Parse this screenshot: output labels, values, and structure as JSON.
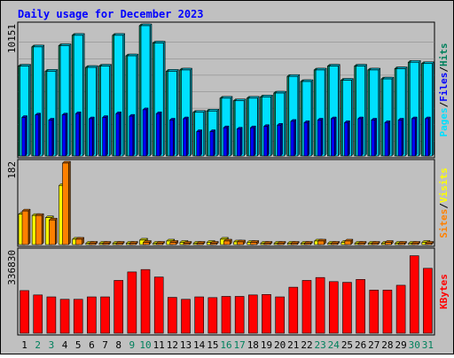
{
  "chart_data": [
    {
      "type": "bar",
      "title": "Daily usage for December 2023",
      "categories": [
        "1",
        "2",
        "3",
        "4",
        "5",
        "6",
        "7",
        "8",
        "9",
        "10",
        "11",
        "12",
        "13",
        "14",
        "15",
        "16",
        "17",
        "18",
        "19",
        "20",
        "21",
        "22",
        "23",
        "24",
        "25",
        "26",
        "27",
        "28",
        "29",
        "30",
        "31"
      ],
      "weekend_days": [
        "2",
        "3",
        "9",
        "10",
        "16",
        "17",
        "23",
        "24",
        "30",
        "31"
      ],
      "panels": [
        {
          "id": "pages-files-hits",
          "y_tick_label": "10151",
          "ylim": [
            0,
            10151
          ],
          "legend": [
            "Pages",
            "/",
            "Files",
            "/",
            "Hits"
          ],
          "grid": true,
          "series": [
            {
              "name": "Hits",
              "color": "#00805c",
              "values": [
                7000,
                8500,
                6600,
                8600,
                9400,
                6900,
                7000,
                9400,
                7800,
                10151,
                8800,
                6600,
                6700,
                3400,
                3500,
                4500,
                4300,
                4500,
                4600,
                4900,
                6200,
                5800,
                6700,
                7000,
                5900,
                7000,
                6700,
                6000,
                6800,
                7300,
                7200
              ]
            },
            {
              "name": "Files",
              "color": "#0000ff",
              "values": [
                3000,
                3200,
                2800,
                3200,
                3300,
                2900,
                3000,
                3300,
                3100,
                3600,
                3300,
                2800,
                2900,
                1900,
                1900,
                2200,
                2100,
                2200,
                2300,
                2400,
                2700,
                2600,
                2800,
                2900,
                2600,
                2900,
                2800,
                2600,
                2800,
                2900,
                2900
              ]
            },
            {
              "name": "Pages",
              "color": "#00e0ff",
              "values": [
                7000,
                8500,
                6600,
                8600,
                9400,
                6900,
                7000,
                9400,
                7800,
                10151,
                8800,
                6600,
                6700,
                3400,
                3500,
                4500,
                4300,
                4500,
                4600,
                4900,
                6200,
                5800,
                6700,
                7000,
                5900,
                7000,
                6700,
                6000,
                6800,
                7300,
                7200
              ]
            }
          ]
        },
        {
          "id": "visits-sites",
          "y_tick_label": "182",
          "ylim": [
            0,
            182
          ],
          "legend": [
            "Sites",
            "/",
            "Visits"
          ],
          "grid": false,
          "series": [
            {
              "name": "Visits",
              "color": "#ffff00",
              "values": [
                68,
                65,
                60,
                132,
                12,
                3,
                3,
                3,
                3,
                10,
                3,
                8,
                5,
                3,
                5,
                12,
                6,
                5,
                3,
                3,
                3,
                3,
                8,
                3,
                5,
                3,
                3,
                3,
                3,
                3,
                5
              ]
            },
            {
              "name": "Sites",
              "color": "#ff8000",
              "values": [
                75,
                65,
                55,
                182,
                12,
                3,
                3,
                3,
                3,
                5,
                3,
                5,
                3,
                3,
                3,
                8,
                6,
                5,
                3,
                3,
                3,
                3,
                8,
                3,
                8,
                3,
                3,
                5,
                3,
                3,
                3
              ]
            }
          ]
        },
        {
          "id": "kbytes",
          "y_tick_label": "336830",
          "ylim": [
            0,
            336830
          ],
          "legend": [
            "KBytes"
          ],
          "grid": false,
          "series": [
            {
              "name": "KBytes",
              "color": "#ff0000",
              "values": [
                176000,
                158000,
                150000,
                140000,
                140000,
                150000,
                150000,
                218000,
                253000,
                263000,
                232000,
                148000,
                140000,
                150000,
                147000,
                152000,
                152000,
                158000,
                160000,
                150000,
                190000,
                218000,
                230000,
                213000,
                210000,
                222000,
                178000,
                178000,
                198000,
                320000,
                268000
              ]
            }
          ]
        }
      ]
    }
  ],
  "colors": {
    "page_bg": "#ffffff",
    "frame_bg": "#c0c0c0",
    "title": "#0000ff",
    "weekday_label": "#000000",
    "weekend_label": "#00805c",
    "grid": "#808080"
  }
}
